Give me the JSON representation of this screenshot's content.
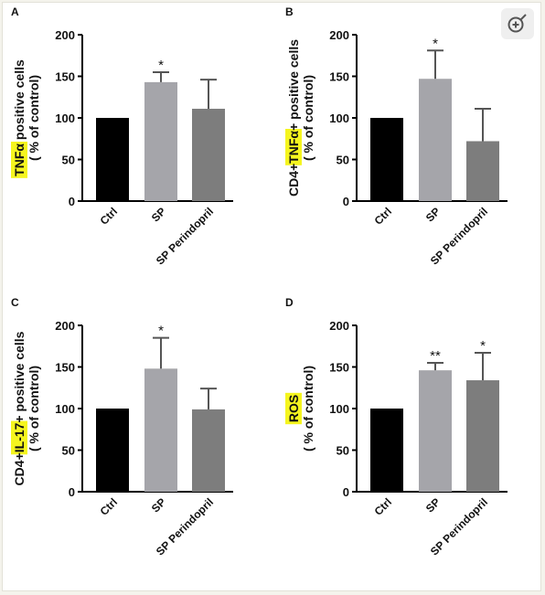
{
  "ui": {
    "highlight_color": "#f5f51f",
    "zoom_icon": "zoom-in-icon"
  },
  "chart_data": [
    {
      "panel": "A",
      "type": "bar",
      "categories": [
        "Ctrl",
        "SP",
        "SP Perindopril"
      ],
      "values": [
        100,
        143,
        111
      ],
      "errors": [
        0,
        12,
        35
      ],
      "significance": [
        "",
        "*",
        ""
      ],
      "ylabel": [
        "TNFα positive cells",
        "( % of control)"
      ],
      "ylabel_highlight": "TNFα",
      "ylim": [
        0,
        200
      ],
      "yticks": [
        0,
        50,
        100,
        150,
        200
      ],
      "bar_colors": [
        "#000000",
        "#a5a5aa",
        "#7d7d7d"
      ]
    },
    {
      "panel": "B",
      "type": "bar",
      "categories": [
        "Ctrl",
        "SP",
        "SP Perindopril"
      ],
      "values": [
        100,
        147,
        72
      ],
      "errors": [
        0,
        34,
        39
      ],
      "significance": [
        "",
        "*",
        ""
      ],
      "ylabel": [
        "CD4+TNFα+ positive cells",
        "( % of control)"
      ],
      "ylabel_highlight": "TNFα",
      "ylim": [
        0,
        200
      ],
      "yticks": [
        0,
        50,
        100,
        150,
        200
      ],
      "bar_colors": [
        "#000000",
        "#a5a5aa",
        "#7d7d7d"
      ]
    },
    {
      "panel": "C",
      "type": "bar",
      "categories": [
        "Ctrl",
        "SP",
        "SP Perindopril"
      ],
      "values": [
        100,
        148,
        99
      ],
      "errors": [
        0,
        37,
        25
      ],
      "significance": [
        "",
        "*",
        ""
      ],
      "ylabel": [
        "CD4+IL-17+ positive cells",
        "( % of control)"
      ],
      "ylabel_highlight": "IL-17",
      "ylim": [
        0,
        200
      ],
      "yticks": [
        0,
        50,
        100,
        150,
        200
      ],
      "bar_colors": [
        "#000000",
        "#a5a5aa",
        "#7d7d7d"
      ]
    },
    {
      "panel": "D",
      "type": "bar",
      "categories": [
        "Ctrl",
        "SP",
        "SP Perindopril"
      ],
      "values": [
        100,
        146,
        134
      ],
      "errors": [
        0,
        9,
        33
      ],
      "significance": [
        "",
        "**",
        "*"
      ],
      "ylabel": [
        "ROS",
        "( % of control)"
      ],
      "ylabel_highlight": "ROS",
      "ylim": [
        0,
        200
      ],
      "yticks": [
        0,
        50,
        100,
        150,
        200
      ],
      "bar_colors": [
        "#000000",
        "#a5a5aa",
        "#7d7d7d"
      ]
    }
  ]
}
